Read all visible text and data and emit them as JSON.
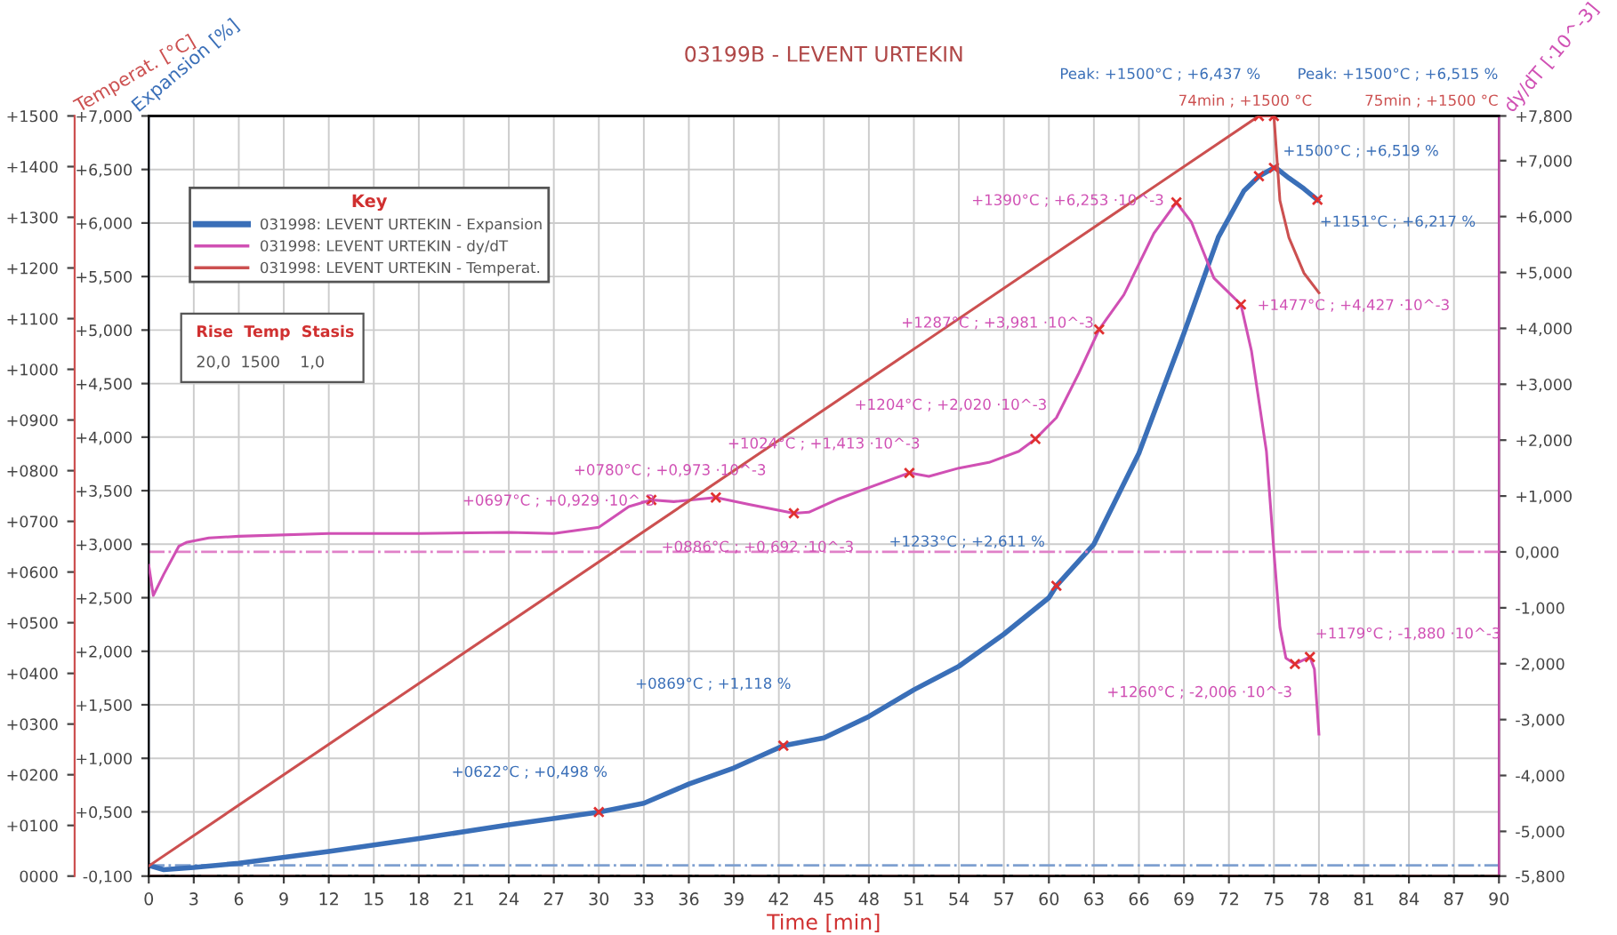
{
  "chart_data": {
    "type": "line",
    "title": "03199B - LEVENT URTEKIN",
    "xlabel": "Time [min]",
    "ylabel": "Expansion [%]",
    "y2label": "dy/dT [·10^-3]",
    "y3label": "Temperat. [°C]",
    "legend_title": "Key",
    "xlim": [
      0,
      90
    ],
    "xticks": [
      0,
      3,
      6,
      9,
      12,
      15,
      18,
      21,
      24,
      27,
      30,
      33,
      36,
      39,
      42,
      45,
      48,
      51,
      54,
      57,
      60,
      63,
      66,
      69,
      72,
      75,
      78,
      81,
      84,
      87,
      90
    ],
    "ylim": [
      -0.1,
      7.0
    ],
    "yticks": [
      {
        "value": -0.1,
        "label": "-0,100"
      },
      {
        "value": 0.5,
        "label": "+0,500"
      },
      {
        "value": 1.0,
        "label": "+1,000"
      },
      {
        "value": 1.5,
        "label": "+1,500"
      },
      {
        "value": 2.0,
        "label": "+2,000"
      },
      {
        "value": 2.5,
        "label": "+2,500"
      },
      {
        "value": 3.0,
        "label": "+3,000"
      },
      {
        "value": 3.5,
        "label": "+3,500"
      },
      {
        "value": 4.0,
        "label": "+4,000"
      },
      {
        "value": 4.5,
        "label": "+4,500"
      },
      {
        "value": 5.0,
        "label": "+5,000"
      },
      {
        "value": 5.5,
        "label": "+5,500"
      },
      {
        "value": 6.0,
        "label": "+6,000"
      },
      {
        "value": 6.5,
        "label": "+6,500"
      },
      {
        "value": 7.0,
        "label": "+7,000"
      }
    ],
    "y2lim": [
      -5.8,
      7.8
    ],
    "y2ticks": [
      {
        "value": -5.8,
        "label": "-5,800"
      },
      {
        "value": -5,
        "label": "-5,000"
      },
      {
        "value": -4,
        "label": "-4,000"
      },
      {
        "value": -3,
        "label": "-3,000"
      },
      {
        "value": -2,
        "label": "-2,000"
      },
      {
        "value": -1,
        "label": "-1,000"
      },
      {
        "value": 0,
        "label": "0,000"
      },
      {
        "value": 1,
        "label": "+1,000"
      },
      {
        "value": 2,
        "label": "+2,000"
      },
      {
        "value": 3,
        "label": "+3,000"
      },
      {
        "value": 4,
        "label": "+4,000"
      },
      {
        "value": 5,
        "label": "+5,000"
      },
      {
        "value": 6,
        "label": "+6,000"
      },
      {
        "value": 7,
        "label": "+7,000"
      },
      {
        "value": 7.8,
        "label": "+7,800"
      }
    ],
    "y3lim": [
      0,
      1500
    ],
    "y3ticks": [
      {
        "value": 0,
        "label": "0000"
      },
      {
        "value": 100,
        "label": "+0100"
      },
      {
        "value": 200,
        "label": "+0200"
      },
      {
        "value": 300,
        "label": "+0300"
      },
      {
        "value": 400,
        "label": "+0400"
      },
      {
        "value": 500,
        "label": "+0500"
      },
      {
        "value": 600,
        "label": "+0600"
      },
      {
        "value": 700,
        "label": "+0700"
      },
      {
        "value": 800,
        "label": "+0800"
      },
      {
        "value": 900,
        "label": "+0900"
      },
      {
        "value": 1000,
        "label": "+1000"
      },
      {
        "value": 1100,
        "label": "+1100"
      },
      {
        "value": 1200,
        "label": "+1200"
      },
      {
        "value": 1300,
        "label": "+1300"
      },
      {
        "value": 1400,
        "label": "+1400"
      },
      {
        "value": 1500,
        "label": "+1500"
      }
    ],
    "grid": true,
    "legend": "top left",
    "line_style": "solid",
    "series": [
      {
        "name": "031998: LEVENT URTEKIN - Expansion",
        "color": "#3a6fb8",
        "axis": "y",
        "x": [
          0,
          1,
          3,
          6,
          12,
          18,
          24,
          30,
          33,
          36,
          39,
          42.3,
          45,
          48,
          51,
          54,
          57,
          60,
          60.5,
          63,
          66,
          69,
          71.3,
          73,
          74,
          75,
          75.1,
          76,
          77,
          77.9
        ],
        "values": [
          0.0,
          -0.04,
          -0.02,
          0.02,
          0.13,
          0.25,
          0.38,
          0.498,
          0.58,
          0.76,
          0.91,
          1.118,
          1.19,
          1.39,
          1.64,
          1.86,
          2.16,
          2.5,
          2.611,
          3.0,
          3.85,
          4.97,
          5.87,
          6.3,
          6.437,
          6.515,
          6.519,
          6.42,
          6.32,
          6.217
        ]
      },
      {
        "name": "031998: LEVENT URTEKIN - dy/dT",
        "color": "#d050b4",
        "axis": "y2",
        "x": [
          0,
          0.3,
          1,
          2,
          2.5,
          4,
          6,
          12,
          18,
          24,
          27,
          30,
          32,
          33.5,
          35,
          37.8,
          40,
          43,
          44,
          46,
          48,
          50.7,
          52,
          54,
          56,
          58,
          59.1,
          60.5,
          62,
          63.35,
          65,
          67,
          68.5,
          69.5,
          71,
          72.8,
          73.5,
          74.5,
          75,
          75.4,
          75.8,
          76.4,
          77.4,
          77.7,
          78
        ],
        "values": [
          -0.24,
          -0.78,
          -0.4,
          0.1,
          0.17,
          0.25,
          0.28,
          0.33,
          0.33,
          0.35,
          0.33,
          0.44,
          0.81,
          0.929,
          0.9,
          0.973,
          0.85,
          0.692,
          0.71,
          0.95,
          1.15,
          1.413,
          1.35,
          1.5,
          1.6,
          1.8,
          2.02,
          2.4,
          3.2,
          3.981,
          4.6,
          5.7,
          6.253,
          5.9,
          4.9,
          4.427,
          3.6,
          1.8,
          0.0,
          -1.35,
          -1.9,
          -2.006,
          -1.88,
          -2.1,
          -3.26
        ]
      },
      {
        "name": "031998: LEVENT URTEKIN - Temperat.",
        "color": "#cc5050",
        "axis": "y3",
        "x": [
          0,
          74,
          75,
          75.4,
          76,
          77,
          78
        ],
        "values": [
          20,
          1500,
          1500,
          1333,
          1260,
          1190,
          1151
        ]
      },
      {
        "type": "scatter",
        "marker": "cross",
        "color": "#e03030",
        "axis": "y",
        "x": [
          30,
          42.3,
          60.5,
          74,
          75,
          77.9
        ],
        "values": [
          0.498,
          1.118,
          2.611,
          6.437,
          6.515,
          6.217
        ]
      },
      {
        "type": "scatter",
        "marker": "cross",
        "color": "#e03030",
        "axis": "y2",
        "x": [
          33.5,
          37.8,
          43,
          50.7,
          59.1,
          63.35,
          68.5,
          72.8,
          76.4,
          77.4
        ],
        "values": [
          0.929,
          0.973,
          0.692,
          1.413,
          2.02,
          3.981,
          6.253,
          4.427,
          -2.006,
          -1.88
        ]
      },
      {
        "type": "scatter",
        "marker": "cross",
        "color": "#e03030",
        "axis": "y3",
        "x": [
          74,
          75
        ],
        "values": [
          1500,
          1500
        ]
      }
    ],
    "ref_lines": [
      {
        "axis": "y",
        "value": 0,
        "color": "#7fa0d0",
        "line_style": "dashdot"
      },
      {
        "axis": "y2",
        "value": 0,
        "color": "#e080c8",
        "line_style": "dashdot"
      },
      {
        "axis": "y3",
        "value": 0,
        "color": "#e08080",
        "line_style": "dashdot"
      }
    ],
    "annotations": [
      "Rise  Temp  Stasis",
      "20,0  1500    1,0",
      "+0622°C ; +0,498 %",
      "+0869°C ; +1,118 %",
      "+1233°C ; +2,611 %",
      "+1500°C ; +6,519 %",
      "+1151°C ; +6,217 %",
      "Peak: +1500°C ; +6,437 %",
      "Peak: +1500°C ; +6,515 %",
      "74min ; +1500 °C",
      "75min ; +1500 °C",
      "+0697°C ; +0,929 ·10^-3",
      "+0780°C ; +0,973 ·10^-3",
      "+0886°C ; +0,692 ·10^-3",
      "+1024°C ; +1,413 ·10^-3",
      "+1204°C ; +2,020 ·10^-3",
      "+1287°C ; +3,981 ·10^-3",
      "+1390°C ; +6,253 ·10^-3",
      "+1477°C ; +4,427 ·10^-3",
      "+1179°C ; -1,880 ·10^-3",
      "+1260°C ; -2,006 ·10^-3"
    ]
  }
}
